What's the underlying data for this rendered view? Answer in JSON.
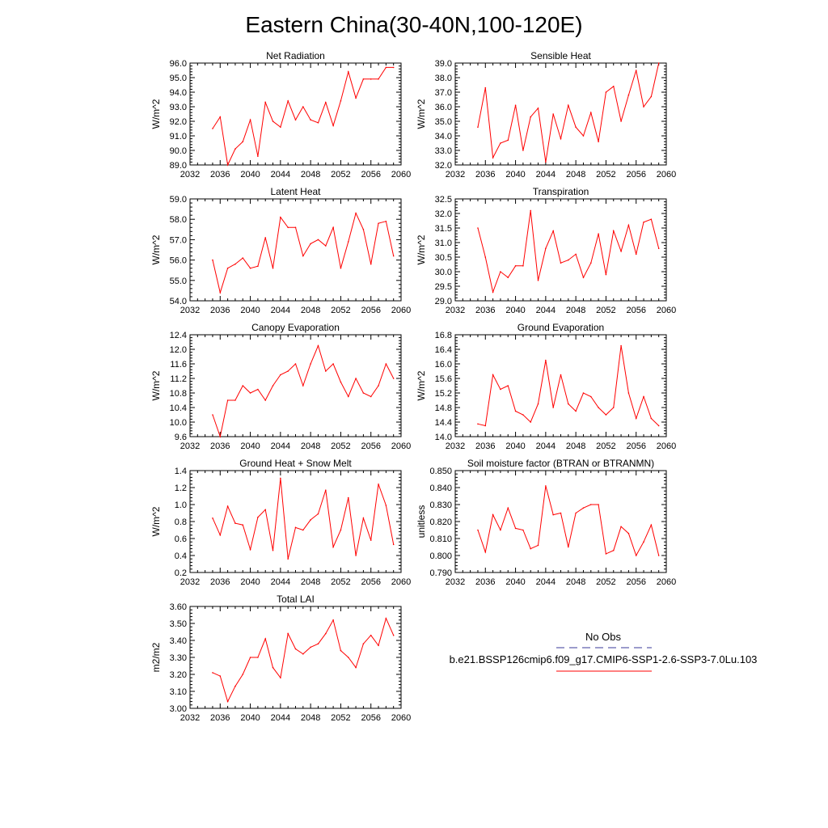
{
  "title": "Eastern China(30-40N,100-120E)",
  "legend": {
    "obs_label": "No Obs",
    "case_label": "b.e21.BSSP126cmip6.f09_g17.CMIP6-SSP1-2.6-SSP3-7.0Lu.103",
    "obs_color": "#3a3a9a",
    "case_color": "#ff0000"
  },
  "chart_data": [
    {
      "type": "line",
      "title": "Net Radiation",
      "ylabel": "W/m^2",
      "xlim": [
        2032,
        2060
      ],
      "ylim": [
        89.0,
        96.0
      ],
      "xticks": [
        2032,
        2036,
        2040,
        2044,
        2048,
        2052,
        2056,
        2060
      ],
      "yticks": [
        "89.0",
        "90.0",
        "91.0",
        "92.0",
        "93.0",
        "94.0",
        "95.0",
        "96.0"
      ],
      "x": [
        2035,
        2036,
        2037,
        2038,
        2039,
        2040,
        2041,
        2042,
        2043,
        2044,
        2045,
        2046,
        2047,
        2048,
        2049,
        2050,
        2051,
        2052,
        2053,
        2054,
        2055,
        2056,
        2057,
        2058,
        2059
      ],
      "series": [
        {
          "values": [
            91.5,
            92.3,
            89.0,
            90.1,
            90.6,
            92.1,
            89.6,
            93.3,
            92.0,
            91.6,
            93.4,
            92.1,
            93.0,
            92.1,
            91.9,
            93.3,
            91.7,
            93.4,
            95.4,
            93.6,
            94.9,
            94.9,
            94.9,
            95.7,
            95.7
          ],
          "color": "#ff0000"
        }
      ]
    },
    {
      "type": "line",
      "title": "Sensible Heat",
      "ylabel": "W/m^2",
      "xlim": [
        2032,
        2060
      ],
      "ylim": [
        32.0,
        39.0
      ],
      "xticks": [
        2032,
        2036,
        2040,
        2044,
        2048,
        2052,
        2056,
        2060
      ],
      "yticks": [
        "32.0",
        "33.0",
        "34.0",
        "35.0",
        "36.0",
        "37.0",
        "38.0",
        "39.0"
      ],
      "x": [
        2035,
        2036,
        2037,
        2038,
        2039,
        2040,
        2041,
        2042,
        2043,
        2044,
        2045,
        2046,
        2047,
        2048,
        2049,
        2050,
        2051,
        2052,
        2053,
        2054,
        2055,
        2056,
        2057,
        2058,
        2059
      ],
      "series": [
        {
          "values": [
            34.6,
            37.3,
            32.5,
            33.5,
            33.7,
            36.1,
            33.0,
            35.3,
            35.9,
            32.2,
            35.5,
            33.8,
            36.1,
            34.6,
            34.0,
            35.6,
            33.6,
            37.0,
            37.4,
            35.0,
            36.8,
            38.5,
            36.0,
            36.7,
            39.0
          ],
          "color": "#ff0000"
        }
      ]
    },
    {
      "type": "line",
      "title": "Latent Heat",
      "ylabel": "W/m^2",
      "xlim": [
        2032,
        2060
      ],
      "ylim": [
        54.0,
        59.0
      ],
      "xticks": [
        2032,
        2036,
        2040,
        2044,
        2048,
        2052,
        2056,
        2060
      ],
      "yticks": [
        "54.0",
        "55.0",
        "56.0",
        "57.0",
        "58.0",
        "59.0"
      ],
      "x": [
        2035,
        2036,
        2037,
        2038,
        2039,
        2040,
        2041,
        2042,
        2043,
        2044,
        2045,
        2046,
        2047,
        2048,
        2049,
        2050,
        2051,
        2052,
        2053,
        2054,
        2055,
        2056,
        2057,
        2058,
        2059
      ],
      "series": [
        {
          "values": [
            56.0,
            54.4,
            55.6,
            55.8,
            56.1,
            55.6,
            55.7,
            57.1,
            55.6,
            58.1,
            57.6,
            57.6,
            56.2,
            56.8,
            57.0,
            56.7,
            57.6,
            55.6,
            56.9,
            58.3,
            57.5,
            55.8,
            57.8,
            57.9,
            56.2
          ],
          "color": "#ff0000"
        }
      ]
    },
    {
      "type": "line",
      "title": "Transpiration",
      "ylabel": "W/m^2",
      "xlim": [
        2032,
        2060
      ],
      "ylim": [
        29.0,
        32.5
      ],
      "xticks": [
        2032,
        2036,
        2040,
        2044,
        2048,
        2052,
        2056,
        2060
      ],
      "yticks": [
        "29.0",
        "29.5",
        "30.0",
        "30.5",
        "31.0",
        "31.5",
        "32.0",
        "32.5"
      ],
      "x": [
        2035,
        2036,
        2037,
        2038,
        2039,
        2040,
        2041,
        2042,
        2043,
        2044,
        2045,
        2046,
        2047,
        2048,
        2049,
        2050,
        2051,
        2052,
        2053,
        2054,
        2055,
        2056,
        2057,
        2058,
        2059
      ],
      "series": [
        {
          "values": [
            31.5,
            30.5,
            29.3,
            30.0,
            29.8,
            30.2,
            30.2,
            32.1,
            29.7,
            30.8,
            31.4,
            30.3,
            30.4,
            30.6,
            29.8,
            30.3,
            31.3,
            29.9,
            31.4,
            30.7,
            31.6,
            30.6,
            31.7,
            31.8,
            30.8
          ],
          "color": "#ff0000"
        }
      ]
    },
    {
      "type": "line",
      "title": "Canopy Evaporation",
      "ylabel": "W/m^2",
      "xlim": [
        2032,
        2060
      ],
      "ylim": [
        9.6,
        12.4
      ],
      "xticks": [
        2032,
        2036,
        2040,
        2044,
        2048,
        2052,
        2056,
        2060
      ],
      "yticks": [
        "9.6",
        "10.0",
        "10.4",
        "10.8",
        "11.2",
        "11.6",
        "12.0",
        "12.4"
      ],
      "x": [
        2035,
        2036,
        2037,
        2038,
        2039,
        2040,
        2041,
        2042,
        2043,
        2044,
        2045,
        2046,
        2047,
        2048,
        2049,
        2050,
        2051,
        2052,
        2053,
        2054,
        2055,
        2056,
        2057,
        2058,
        2059
      ],
      "series": [
        {
          "values": [
            10.2,
            9.6,
            10.6,
            10.6,
            11.0,
            10.8,
            10.9,
            10.6,
            11.0,
            11.3,
            11.4,
            11.6,
            11.0,
            11.6,
            12.1,
            11.4,
            11.6,
            11.1,
            10.7,
            11.2,
            10.8,
            10.7,
            11.0,
            11.6,
            11.2
          ],
          "color": "#ff0000"
        }
      ]
    },
    {
      "type": "line",
      "title": "Ground Evaporation",
      "ylabel": "W/m^2",
      "xlim": [
        2032,
        2060
      ],
      "ylim": [
        14.0,
        16.8
      ],
      "xticks": [
        2032,
        2036,
        2040,
        2044,
        2048,
        2052,
        2056,
        2060
      ],
      "yticks": [
        "14.0",
        "14.4",
        "14.8",
        "15.2",
        "15.6",
        "16.0",
        "16.4",
        "16.8"
      ],
      "x": [
        2035,
        2036,
        2037,
        2038,
        2039,
        2040,
        2041,
        2042,
        2043,
        2044,
        2045,
        2046,
        2047,
        2048,
        2049,
        2050,
        2051,
        2052,
        2053,
        2054,
        2055,
        2056,
        2057,
        2058,
        2059
      ],
      "series": [
        {
          "values": [
            14.35,
            14.3,
            15.7,
            15.3,
            15.4,
            14.7,
            14.6,
            14.4,
            14.9,
            16.1,
            14.8,
            15.7,
            14.9,
            14.7,
            15.2,
            15.1,
            14.8,
            14.6,
            14.8,
            16.5,
            15.2,
            14.5,
            15.1,
            14.5,
            14.3
          ],
          "color": "#ff0000"
        }
      ]
    },
    {
      "type": "line",
      "title": "Ground Heat + Snow Melt",
      "ylabel": "W/m^2",
      "xlim": [
        2032,
        2060
      ],
      "ylim": [
        0.2,
        1.4
      ],
      "xticks": [
        2032,
        2036,
        2040,
        2044,
        2048,
        2052,
        2056,
        2060
      ],
      "yticks": [
        "0.2",
        "0.4",
        "0.6",
        "0.8",
        "1.0",
        "1.2",
        "1.4"
      ],
      "x": [
        2035,
        2036,
        2037,
        2038,
        2039,
        2040,
        2041,
        2042,
        2043,
        2044,
        2045,
        2046,
        2047,
        2048,
        2049,
        2050,
        2051,
        2052,
        2053,
        2054,
        2055,
        2056,
        2057,
        2058,
        2059
      ],
      "series": [
        {
          "values": [
            0.84,
            0.64,
            0.98,
            0.78,
            0.76,
            0.47,
            0.85,
            0.94,
            0.46,
            1.31,
            0.36,
            0.73,
            0.7,
            0.82,
            0.89,
            1.17,
            0.5,
            0.7,
            1.08,
            0.4,
            0.84,
            0.58,
            1.24,
            0.99,
            0.53
          ],
          "color": "#ff0000"
        }
      ]
    },
    {
      "type": "line",
      "title": "Soil moisture factor (BTRAN or BTRANMN)",
      "ylabel": "unitless",
      "xlim": [
        2032,
        2060
      ],
      "ylim": [
        0.79,
        0.85
      ],
      "xticks": [
        2032,
        2036,
        2040,
        2044,
        2048,
        2052,
        2056,
        2060
      ],
      "yticks": [
        "0.790",
        "0.800",
        "0.810",
        "0.820",
        "0.830",
        "0.840",
        "0.850"
      ],
      "x": [
        2035,
        2036,
        2037,
        2038,
        2039,
        2040,
        2041,
        2042,
        2043,
        2044,
        2045,
        2046,
        2047,
        2048,
        2049,
        2050,
        2051,
        2052,
        2053,
        2054,
        2055,
        2056,
        2057,
        2058,
        2059
      ],
      "series": [
        {
          "values": [
            0.815,
            0.802,
            0.824,
            0.815,
            0.828,
            0.816,
            0.815,
            0.804,
            0.806,
            0.841,
            0.824,
            0.825,
            0.805,
            0.825,
            0.828,
            0.83,
            0.83,
            0.801,
            0.803,
            0.817,
            0.813,
            0.8,
            0.808,
            0.818,
            0.8
          ],
          "color": "#ff0000"
        }
      ]
    },
    {
      "type": "line",
      "title": "Total LAI",
      "ylabel": "m2/m2",
      "xlim": [
        2032,
        2060
      ],
      "ylim": [
        3.0,
        3.6
      ],
      "xticks": [
        2032,
        2036,
        2040,
        2044,
        2048,
        2052,
        2056,
        2060
      ],
      "yticks": [
        "3.00",
        "3.10",
        "3.20",
        "3.30",
        "3.40",
        "3.50",
        "3.60"
      ],
      "x": [
        2035,
        2036,
        2037,
        2038,
        2039,
        2040,
        2041,
        2042,
        2043,
        2044,
        2045,
        2046,
        2047,
        2048,
        2049,
        2050,
        2051,
        2052,
        2053,
        2054,
        2055,
        2056,
        2057,
        2058,
        2059
      ],
      "series": [
        {
          "values": [
            3.21,
            3.19,
            3.04,
            3.13,
            3.2,
            3.3,
            3.3,
            3.41,
            3.24,
            3.18,
            3.44,
            3.35,
            3.32,
            3.36,
            3.38,
            3.44,
            3.52,
            3.34,
            3.3,
            3.24,
            3.38,
            3.43,
            3.37,
            3.53,
            3.43
          ],
          "color": "#ff0000"
        }
      ]
    }
  ]
}
